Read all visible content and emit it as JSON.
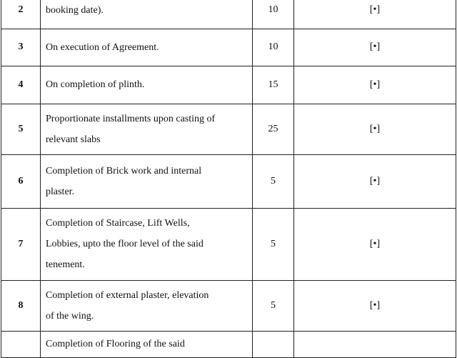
{
  "table": {
    "rows": [
      {
        "no": "2",
        "lines": [
          "booking date)."
        ],
        "percent": "10",
        "amount": "[•]"
      },
      {
        "no": "3",
        "lines": [
          "On execution of Agreement."
        ],
        "percent": "10",
        "amount": "[•]"
      },
      {
        "no": "4",
        "lines": [
          "On completion of plinth."
        ],
        "percent": "15",
        "amount": "[•]"
      },
      {
        "no": "5",
        "lines": [
          "Proportionate installments upon casting of",
          "relevant slabs"
        ],
        "percent": "25",
        "amount": "[•]"
      },
      {
        "no": "6",
        "lines": [
          "Completion of Brick work and internal",
          "plaster."
        ],
        "percent": "5",
        "amount": "[•]"
      },
      {
        "no": "7",
        "lines": [
          "Completion of Staircase, Lift Wells,",
          "Lobbies, upto the floor level of the said",
          "tenement."
        ],
        "percent": "5",
        "amount": "[•]"
      },
      {
        "no": "8",
        "lines": [
          "Completion of external plaster, elevation",
          "of the wing."
        ],
        "percent": "5",
        "amount": "[•]"
      },
      {
        "no": "",
        "lines": [
          "Completion of Flooring of the said"
        ],
        "percent": "",
        "amount": ""
      }
    ]
  }
}
